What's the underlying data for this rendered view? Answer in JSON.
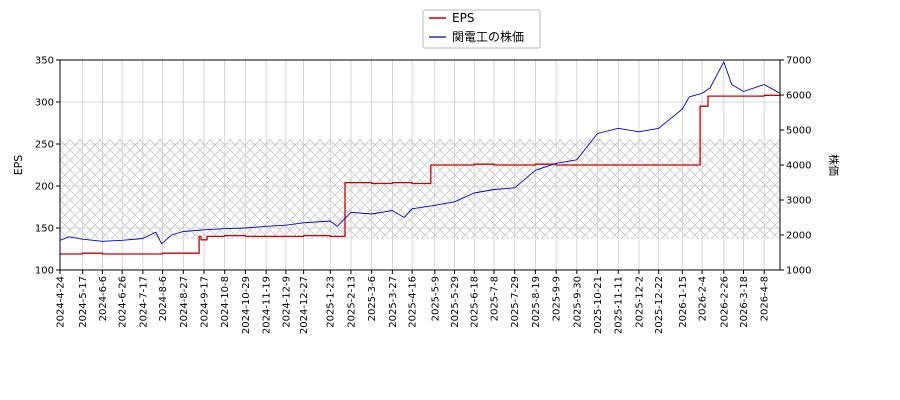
{
  "chart_data": {
    "type": "line",
    "legend": {
      "placement": "top-center"
    },
    "grid": true,
    "x": {
      "ticks": [
        "2024-4-24",
        "2024-5-17",
        "2024-6-6",
        "2024-6-26",
        "2024-7-17",
        "2024-8-6",
        "2024-8-27",
        "2024-9-17",
        "2024-10-8",
        "2024-10-29",
        "2024-11-19",
        "2024-12-9",
        "2024-12-27",
        "2025-1-23",
        "2025-2-13",
        "2025-3-6",
        "2025-3-27",
        "2025-4-16",
        "2025-5-9",
        "2025-5-29",
        "2025-6-18",
        "2025-7-8",
        "2025-7-29",
        "2025-8-19",
        "2025-9-9",
        "2025-9-30",
        "2025-10-21",
        "2025-11-11",
        "2025-12-2",
        "2025-12-22",
        "2026-1-15",
        "2026-2-4",
        "2026-2-26",
        "2026-3-18",
        "2026-4-8"
      ],
      "range": [
        "2024-4-24",
        "2026-4-24"
      ]
    },
    "y_left": {
      "label": "EPS",
      "range": [
        100,
        350
      ],
      "ticks": [
        100,
        150,
        200,
        250,
        300,
        350
      ]
    },
    "y_right": {
      "label": "株価",
      "range": [
        1000,
        7000
      ],
      "ticks": [
        1000,
        2000,
        3000,
        4000,
        5000,
        6000,
        7000
      ]
    },
    "hatched_band": {
      "axis": "left",
      "range": [
        137,
        256
      ]
    },
    "series": [
      {
        "name": "EPS",
        "axis": "left",
        "color": "#cc0000",
        "step": true,
        "points": [
          [
            "2024-4-24",
            119
          ],
          [
            "2024-5-17",
            120
          ],
          [
            "2024-6-6",
            119
          ],
          [
            "2024-6-26",
            119
          ],
          [
            "2024-7-17",
            119
          ],
          [
            "2024-8-6",
            120
          ],
          [
            "2024-8-27",
            120
          ],
          [
            "2024-9-10",
            120
          ],
          [
            "2024-9-12",
            140
          ],
          [
            "2024-9-14",
            136
          ],
          [
            "2024-9-20",
            140
          ],
          [
            "2024-10-8",
            141
          ],
          [
            "2024-10-29",
            140
          ],
          [
            "2024-11-19",
            140
          ],
          [
            "2024-12-9",
            140
          ],
          [
            "2024-12-27",
            141
          ],
          [
            "2025-1-23",
            140
          ],
          [
            "2025-2-6",
            140
          ],
          [
            "2025-2-7",
            204
          ],
          [
            "2025-2-13",
            204
          ],
          [
            "2025-3-6",
            203
          ],
          [
            "2025-3-27",
            204
          ],
          [
            "2025-4-16",
            203
          ],
          [
            "2025-5-2",
            203
          ],
          [
            "2025-5-5",
            225
          ],
          [
            "2025-5-29",
            225
          ],
          [
            "2025-6-18",
            226
          ],
          [
            "2025-7-8",
            225
          ],
          [
            "2025-7-29",
            225
          ],
          [
            "2025-8-19",
            226
          ],
          [
            "2025-9-9",
            225
          ],
          [
            "2025-9-30",
            225
          ],
          [
            "2025-10-21",
            225
          ],
          [
            "2025-11-11",
            225
          ],
          [
            "2025-12-2",
            225
          ],
          [
            "2025-12-22",
            225
          ],
          [
            "2026-1-15",
            225
          ],
          [
            "2026-1-31",
            225
          ],
          [
            "2026-2-2",
            295
          ],
          [
            "2026-2-10",
            307
          ],
          [
            "2026-2-26",
            307
          ],
          [
            "2026-3-18",
            307
          ],
          [
            "2026-4-8",
            308
          ],
          [
            "2026-4-24",
            308
          ]
        ]
      },
      {
        "name": "関電工の株価",
        "axis": "right",
        "color": "#0000cc",
        "step": false,
        "points": [
          [
            "2024-4-24",
            1850
          ],
          [
            "2024-5-3",
            1950
          ],
          [
            "2024-5-17",
            1880
          ],
          [
            "2024-6-6",
            1820
          ],
          [
            "2024-6-26",
            1850
          ],
          [
            "2024-7-17",
            1900
          ],
          [
            "2024-7-30",
            2080
          ],
          [
            "2024-8-5",
            1750
          ],
          [
            "2024-8-15",
            2000
          ],
          [
            "2024-8-27",
            2100
          ],
          [
            "2024-9-17",
            2150
          ],
          [
            "2024-10-8",
            2180
          ],
          [
            "2024-10-29",
            2200
          ],
          [
            "2024-11-19",
            2250
          ],
          [
            "2024-12-9",
            2280
          ],
          [
            "2024-12-27",
            2350
          ],
          [
            "2025-1-23",
            2400
          ],
          [
            "2025-1-30",
            2250
          ],
          [
            "2025-2-13",
            2650
          ],
          [
            "2025-3-6",
            2600
          ],
          [
            "2025-3-27",
            2700
          ],
          [
            "2025-4-8",
            2500
          ],
          [
            "2025-4-16",
            2750
          ],
          [
            "2025-5-9",
            2850
          ],
          [
            "2025-5-29",
            2950
          ],
          [
            "2025-6-18",
            3200
          ],
          [
            "2025-7-8",
            3300
          ],
          [
            "2025-7-29",
            3350
          ],
          [
            "2025-8-19",
            3850
          ],
          [
            "2025-9-9",
            4050
          ],
          [
            "2025-9-30",
            4150
          ],
          [
            "2025-10-21",
            4900
          ],
          [
            "2025-11-11",
            5050
          ],
          [
            "2025-12-2",
            4950
          ],
          [
            "2025-12-22",
            5050
          ],
          [
            "2026-1-15",
            5600
          ],
          [
            "2026-1-22",
            5950
          ],
          [
            "2026-2-4",
            6050
          ],
          [
            "2026-2-12",
            6200
          ],
          [
            "2026-2-26",
            6950
          ],
          [
            "2026-3-6",
            6300
          ],
          [
            "2026-3-18",
            6100
          ],
          [
            "2026-4-8",
            6300
          ],
          [
            "2026-4-24",
            6050
          ]
        ]
      }
    ]
  }
}
